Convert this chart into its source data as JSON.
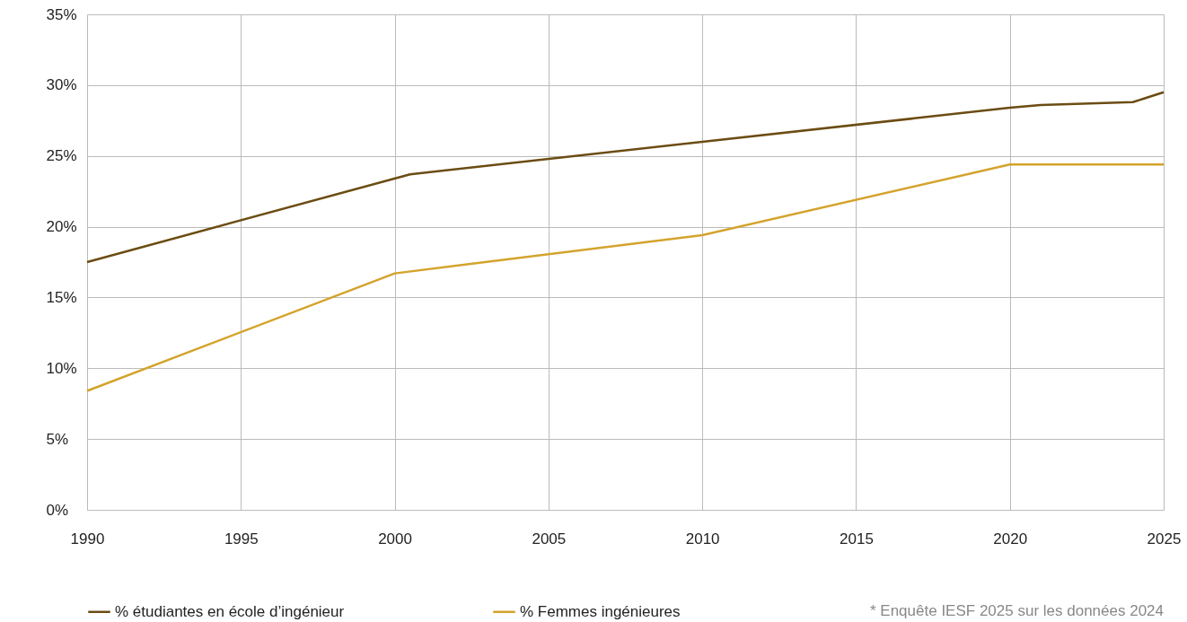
{
  "chart_data": {
    "type": "line",
    "series": [
      {
        "name": "% étudiantes en école d’ingénieur",
        "color": "#6b4c12",
        "x": [
          1990,
          2000.5,
          2010,
          2020,
          2021,
          2024,
          2025
        ],
        "values": [
          17.5,
          23.7,
          26.0,
          28.4,
          28.6,
          28.8,
          29.5
        ]
      },
      {
        "name": "% Femmes ingénieures",
        "color": "#d4a32c",
        "x": [
          1990,
          2000,
          2010,
          2020,
          2025
        ],
        "values": [
          8.4,
          16.7,
          19.4,
          24.4,
          24.4
        ]
      }
    ],
    "xlim": [
      1990,
      2025
    ],
    "xticks": [
      1990,
      1995,
      2000,
      2005,
      2010,
      2015,
      2020,
      2025
    ],
    "ylim": [
      0,
      35
    ],
    "yticks": [
      {
        "value": 0,
        "label": "0%"
      },
      {
        "value": 5,
        "label": "5%"
      },
      {
        "value": 10,
        "label": "10%"
      },
      {
        "value": 15,
        "label": "15%"
      },
      {
        "value": 20,
        "label": "20%"
      },
      {
        "value": 25,
        "label": "25%"
      },
      {
        "value": 30,
        "label": "30%"
      },
      {
        "value": 35,
        "label": "35%"
      }
    ],
    "grid": true,
    "legend": "bottom",
    "line_style": "solid",
    "annotations": [
      "* Enquête IESF 2025 sur les données 2024"
    ]
  }
}
